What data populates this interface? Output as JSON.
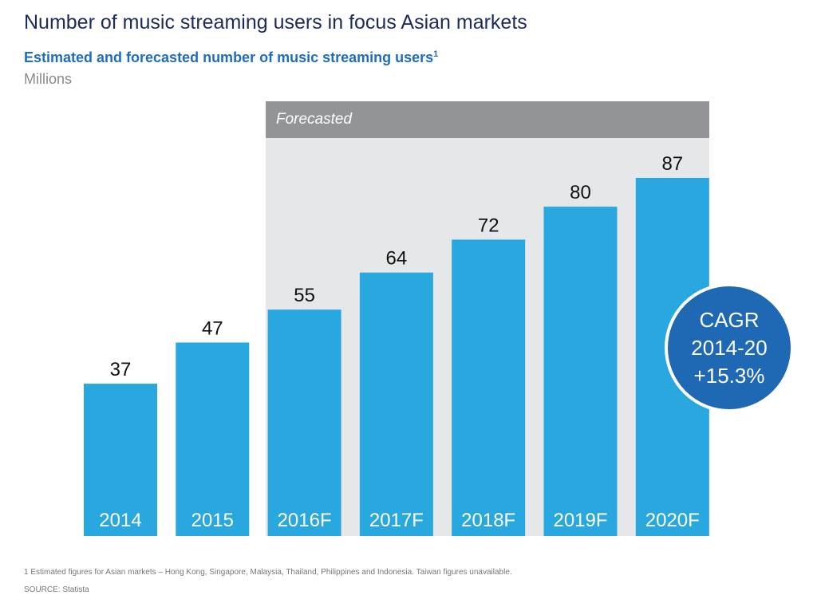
{
  "title": "Number of music streaming users in focus Asian markets",
  "subtitle": "Estimated and forecasted number of music streaming users",
  "subtitle_footnote_marker": "1",
  "units": "Millions",
  "forecast_label": "Forecasted",
  "cagr": {
    "line1": "CAGR",
    "line2": "2014-20",
    "line3": "+15.3%"
  },
  "footnote": "1 Estimated  figures for Asian markets – Hong Kong, Singapore, Malaysia, Thailand, Philippines and Indonesia. Taiwan figures unavailable.",
  "source": "SOURCE: Statista",
  "colors": {
    "bar": "#29a8e0",
    "forecast_header": "#929497",
    "forecast_panel": "#e6e7e8",
    "cagr_circle": "#1f68b4",
    "title": "#1c2b5a",
    "subtitle": "#1f6dbd"
  },
  "chart_data": {
    "type": "bar",
    "categories": [
      "2014",
      "2015",
      "2016F",
      "2017F",
      "2018F",
      "2019F",
      "2020F"
    ],
    "values": [
      37,
      47,
      55,
      64,
      72,
      80,
      87
    ],
    "forecast_categories": [
      "2016F",
      "2017F",
      "2018F",
      "2019F",
      "2020F"
    ],
    "title": "Number of music streaming users in focus Asian markets",
    "ylabel": "Millions",
    "ylim": [
      0,
      87
    ],
    "grid": false,
    "data_labels": true
  }
}
